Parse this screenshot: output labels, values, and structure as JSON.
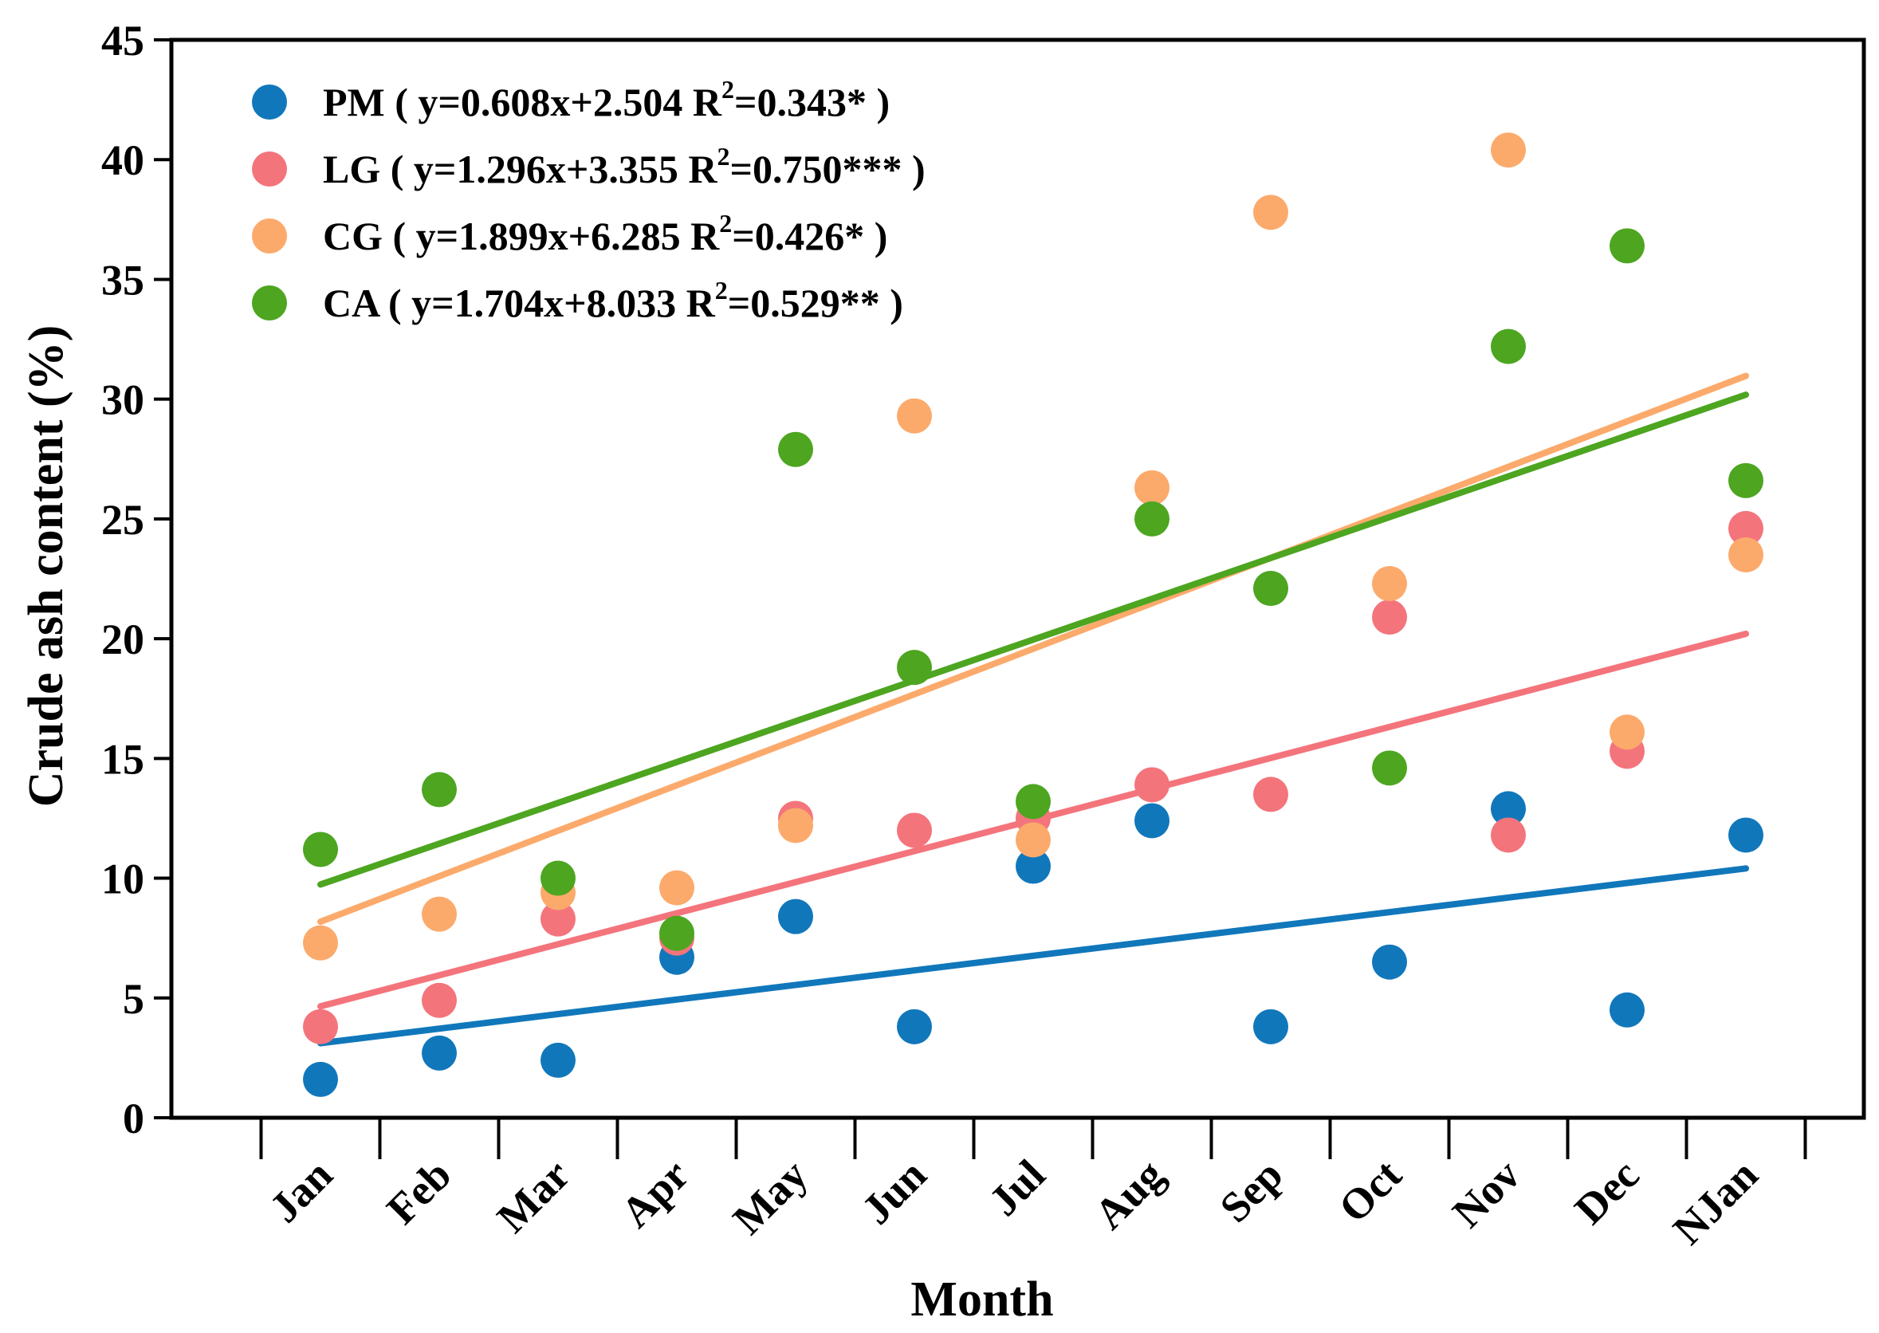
{
  "chart_data": {
    "type": "scatter",
    "xlabel": "Month",
    "ylabel": "Crude ash content (%)",
    "categories": [
      "Jan",
      "Feb",
      "Mar",
      "Apr",
      "May",
      "Jun",
      "Jul",
      "Aug",
      "Sep",
      "Oct",
      "Nov",
      "Dec",
      "NJan"
    ],
    "ylim": [
      0,
      45
    ],
    "yticks": [
      0,
      5,
      10,
      15,
      20,
      25,
      30,
      35,
      40,
      45
    ],
    "legend_position": "top-left",
    "grid": false,
    "series": [
      {
        "name": "PM",
        "color": "#1177bb",
        "legend": {
          "label": "PM",
          "equation": "y=0.608x+2.504",
          "r2_label": "R",
          "r2_sup": "2",
          "r2_value": "=0.343*"
        },
        "trend": {
          "slope": 0.608,
          "intercept": 2.504
        },
        "values": [
          1.6,
          2.7,
          2.4,
          6.7,
          8.4,
          3.8,
          10.5,
          12.4,
          3.8,
          6.5,
          12.9,
          4.5,
          11.8
        ]
      },
      {
        "name": "LG",
        "color": "#f4747c",
        "legend": {
          "label": "LG",
          "equation": "y=1.296x+3.355",
          "r2_label": "R",
          "r2_sup": "2",
          "r2_value": "=0.750***"
        },
        "trend": {
          "slope": 1.296,
          "intercept": 3.355
        },
        "values": [
          3.8,
          4.9,
          8.3,
          7.5,
          12.5,
          12.0,
          12.5,
          13.9,
          13.5,
          20.9,
          11.8,
          15.3,
          24.6
        ]
      },
      {
        "name": "CG",
        "color": "#fbaa6c",
        "legend": {
          "label": "CG",
          "equation": "y=1.899x+6.285",
          "r2_label": "R",
          "r2_sup": "2",
          "r2_value": "=0.426*"
        },
        "trend": {
          "slope": 1.899,
          "intercept": 6.285
        },
        "values": [
          7.3,
          8.5,
          9.4,
          9.6,
          12.2,
          29.3,
          11.6,
          26.3,
          37.8,
          22.3,
          40.4,
          16.1,
          23.5
        ]
      },
      {
        "name": "CA",
        "color": "#4da520",
        "legend": {
          "label": "CA",
          "equation": "y=1.704x+8.033",
          "r2_label": "R",
          "r2_sup": "2",
          "r2_value": "=0.529**"
        },
        "trend": {
          "slope": 1.704,
          "intercept": 8.033
        },
        "values": [
          11.2,
          13.7,
          10.0,
          7.7,
          27.9,
          18.8,
          13.2,
          25.0,
          22.1,
          14.6,
          32.2,
          36.4,
          26.6
        ]
      }
    ]
  }
}
